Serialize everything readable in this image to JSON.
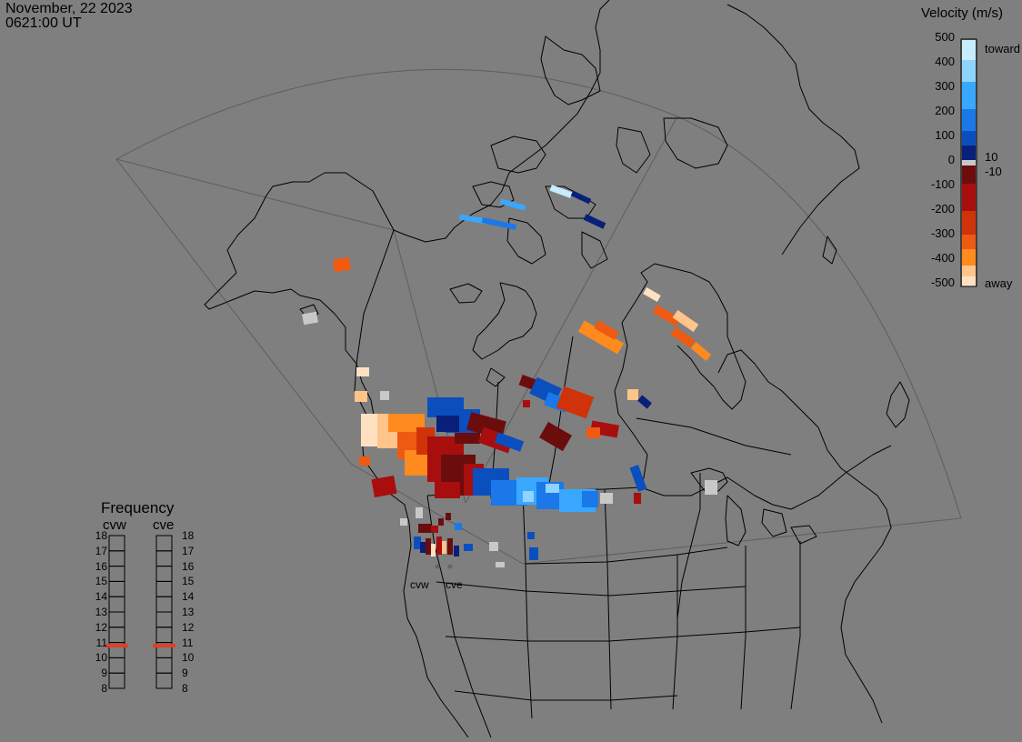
{
  "header": {
    "date": "November, 22 2023",
    "time": "0621:00 UT"
  },
  "velocity_scale": {
    "title": "Velocity (m/s)",
    "ticks": [
      "500",
      "400",
      "300",
      "200",
      "100",
      "0",
      "-100",
      "-200",
      "-300",
      "-400",
      "-500"
    ],
    "toward_label": "toward",
    "away_label": "away",
    "positive_threshold": "10",
    "negative_threshold": "-10",
    "colors": [
      "#c8ecff",
      "#8fd3ff",
      "#3aa7ff",
      "#1a78e8",
      "#0b4fbf",
      "#08207a",
      "#c8c8c8",
      "#6b0d0d",
      "#a80e0e",
      "#d0320a",
      "#ee5a12",
      "#ff8a1e",
      "#ffc48a",
      "#ffe1c2"
    ]
  },
  "frequency_panel": {
    "title": "Frequency",
    "stations": [
      "cvw",
      "cve"
    ],
    "levels": [
      "18",
      "17",
      "16",
      "15",
      "14",
      "13",
      "12",
      "11",
      "10",
      "9",
      "8"
    ],
    "current_mhz": [
      10.8,
      10.8
    ],
    "indicator_color": "#e0402a"
  },
  "radar_sites": [
    "cvw",
    "cve"
  ]
}
